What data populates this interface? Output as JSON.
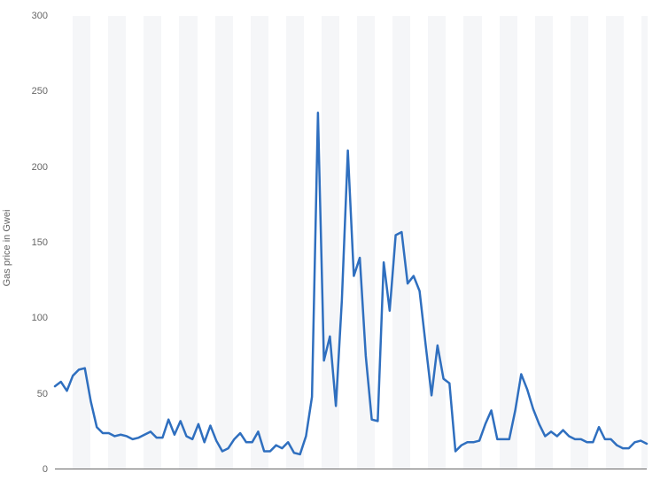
{
  "chart": {
    "type": "line",
    "y_axis_title": "Gas price in Gwei",
    "ylim": [
      0,
      300
    ],
    "ytick_step": 50,
    "y_ticks": [
      0,
      50,
      100,
      150,
      200,
      250,
      300
    ],
    "label_fontsize": 11,
    "label_color": "#666666",
    "line_color": "#2f6fbf",
    "line_width": 2.5,
    "background_color": "#ffffff",
    "stripe_colors": [
      "#ffffff",
      "#f5f6f8"
    ],
    "x_axis_color": "#666666",
    "values": [
      55,
      58,
      52,
      62,
      66,
      67,
      45,
      28,
      24,
      24,
      22,
      23,
      22,
      20,
      21,
      23,
      25,
      21,
      21,
      33,
      23,
      32,
      22,
      20,
      30,
      18,
      29,
      19,
      12,
      14,
      20,
      24,
      18,
      18,
      25,
      12,
      12,
      16,
      14,
      18,
      11,
      10,
      22,
      48,
      236,
      72,
      88,
      42,
      112,
      211,
      128,
      140,
      75,
      33,
      32,
      137,
      105,
      155,
      157,
      123,
      128,
      118,
      83,
      49,
      82,
      60,
      57,
      12,
      16,
      18,
      18,
      19,
      30,
      39,
      20,
      20,
      20,
      39,
      63,
      53,
      40,
      30,
      22,
      25,
      22,
      26,
      22,
      20,
      20,
      18,
      18,
      28,
      20,
      20,
      16,
      14,
      14,
      18,
      19,
      17
    ]
  }
}
